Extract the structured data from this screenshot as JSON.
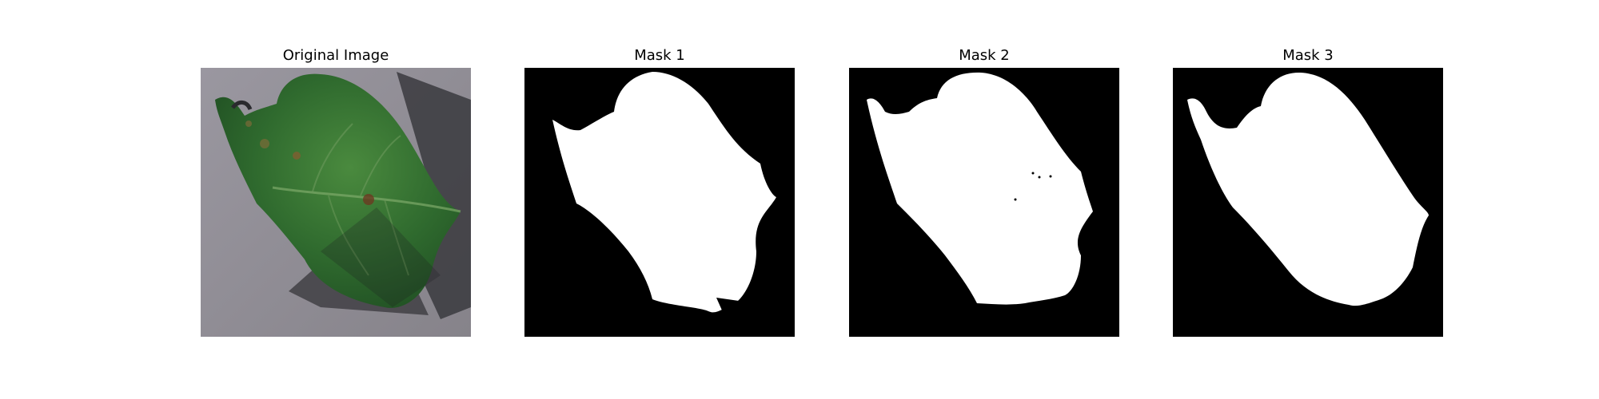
{
  "panels": [
    {
      "title": "Original Image"
    },
    {
      "title": "Mask 1"
    },
    {
      "title": "Mask 2"
    },
    {
      "title": "Mask 3"
    }
  ],
  "colors": {
    "background": "#ffffff",
    "mask_background": "#000000",
    "mask_foreground": "#ffffff",
    "photo_background": "#8f8c92",
    "leaf_dark": "#1f4d22",
    "leaf_mid": "#2f6a2e",
    "leaf_light": "#4a8a3e",
    "shadow": "#3a393e"
  }
}
